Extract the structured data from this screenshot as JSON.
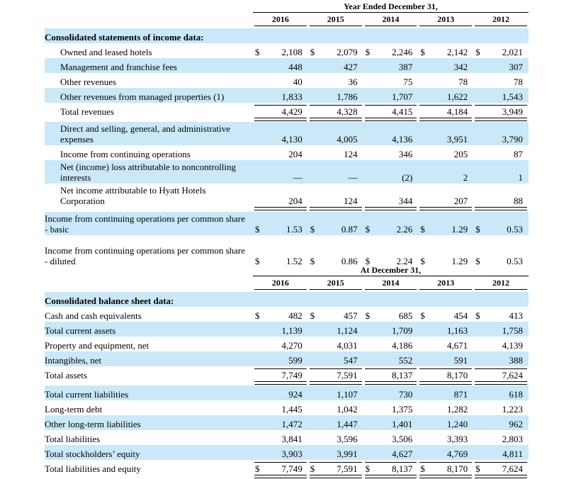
{
  "income_table": {
    "period_header": "Year Ended December 31,",
    "years": [
      "2016",
      "2015",
      "2014",
      "2013",
      "2012"
    ],
    "currency": "$",
    "rows": [
      {
        "name": "section-header-income",
        "label": "Consolidated statements of income data:",
        "bold": true,
        "highlight": true
      },
      {
        "name": "row-owned-and-leased-hotels",
        "label": "Owned and leased hotels",
        "indent": true,
        "dollars": true,
        "values": [
          "2,108",
          "2,079",
          "2,246",
          "2,142",
          "2,021"
        ]
      },
      {
        "name": "row-management-and-franchise-fees",
        "label": "Management and franchise fees",
        "indent": true,
        "highlight": true,
        "values": [
          "448",
          "427",
          "387",
          "342",
          "307"
        ]
      },
      {
        "name": "row-other-revenues",
        "label": "Other revenues",
        "indent": true,
        "values": [
          "40",
          "36",
          "75",
          "78",
          "78"
        ]
      },
      {
        "name": "row-other-revenues-managed-properties",
        "label": "Other revenues from managed properties (1)",
        "indent": true,
        "highlight": true,
        "values": [
          "1,833",
          "1,786",
          "1,707",
          "1,622",
          "1,543"
        ]
      },
      {
        "name": "row-total-revenues",
        "label": "Total revenues",
        "indent": true,
        "rule_top": true,
        "rule_bottom": "double",
        "values": [
          "4,429",
          "4,328",
          "4,415",
          "4,184",
          "3,949"
        ]
      },
      {
        "name": "row-direct-selling-general-admin-expenses",
        "label": "Direct and selling, general, and administrative",
        "label2": "expenses",
        "indent": true,
        "highlight": true,
        "space": 6,
        "values": [
          "4,130",
          "4,005",
          "4,136",
          "3,951",
          "3,790"
        ]
      },
      {
        "name": "row-income-from-continuing-operations",
        "label": "Income from continuing operations",
        "indent": true,
        "values": [
          "204",
          "124",
          "346",
          "205",
          "87"
        ]
      },
      {
        "name": "row-net-income-loss-noncontrolling-interests",
        "label": "Net (income) loss attributable to noncontrolling",
        "label2": "interests",
        "indent": true,
        "highlight": true,
        "values": [
          "—",
          "—",
          "(2)",
          "2",
          "1"
        ]
      },
      {
        "name": "row-net-income-hyatt-hotels-corporation",
        "label": "Net income attributable to Hyatt Hotels",
        "label2": "Corporation",
        "indent": true,
        "rule_bottom": "double",
        "values": [
          "204",
          "124",
          "344",
          "207",
          "88"
        ]
      },
      {
        "name": "row-income-per-share-basic",
        "label": "Income from continuing operations per common share",
        "label2": "- basic",
        "highlight": true,
        "dollars": true,
        "space": 7,
        "values": [
          "1.53",
          "0.87",
          "2.26",
          "1.29",
          "0.53"
        ]
      },
      {
        "name": "row-income-per-share-diluted",
        "label": "Income from continuing operations per common share",
        "label2": "- diluted",
        "dollars": true,
        "space": 12,
        "values": [
          "1.52",
          "0.86",
          "2.24",
          "1.29",
          "0.53"
        ]
      }
    ]
  },
  "balance_table": {
    "period_header": "At December 31,",
    "years": [
      "2016",
      "2015",
      "2014",
      "2013",
      "2012"
    ],
    "currency": "$",
    "rows": [
      {
        "name": "section-header-balance",
        "label": "Consolidated balance sheet data:",
        "bold": true,
        "highlight": true
      },
      {
        "name": "row-cash-and-cash-equivalents",
        "label": "Cash and cash equivalents",
        "dollars": true,
        "values": [
          "482",
          "457",
          "685",
          "454",
          "413"
        ]
      },
      {
        "name": "row-total-current-assets",
        "label": "Total current assets",
        "highlight": true,
        "values": [
          "1,139",
          "1,124",
          "1,709",
          "1,163",
          "1,758"
        ]
      },
      {
        "name": "row-property-and-equipment-net",
        "label": "Property and equipment, net",
        "values": [
          "4,270",
          "4,031",
          "4,186",
          "4,671",
          "4,139"
        ]
      },
      {
        "name": "row-intangibles-net",
        "label": "Intangibles, net",
        "highlight": true,
        "values": [
          "599",
          "547",
          "552",
          "591",
          "388"
        ]
      },
      {
        "name": "row-total-assets",
        "label": "Total assets",
        "rule_top": true,
        "rule_bottom": "double",
        "values": [
          "7,749",
          "7,591",
          "8,137",
          "8,170",
          "7,624"
        ]
      },
      {
        "name": "row-total-current-liabilities",
        "label": "Total current liabilities",
        "highlight": true,
        "values": [
          "924",
          "1,107",
          "730",
          "871",
          "618"
        ]
      },
      {
        "name": "row-long-term-debt",
        "label": "Long-term debt",
        "values": [
          "1,445",
          "1,042",
          "1,375",
          "1,282",
          "1,223"
        ]
      },
      {
        "name": "row-other-long-term-liabilities",
        "label": "Other long-term liabilities",
        "highlight": true,
        "values": [
          "1,472",
          "1,447",
          "1,401",
          "1,240",
          "962"
        ]
      },
      {
        "name": "row-total-liabilities",
        "label": "Total liabilities",
        "values": [
          "3,841",
          "3,596",
          "3,506",
          "3,393",
          "2,803"
        ]
      },
      {
        "name": "row-total-stockholders-equity",
        "label": "Total stockholders’ equity",
        "highlight": true,
        "values": [
          "3,903",
          "3,991",
          "4,627",
          "4,769",
          "4,811"
        ]
      },
      {
        "name": "row-total-liabilities-and-equity",
        "label": "Total liabilities and equity",
        "dollars": true,
        "rule_top": true,
        "rule_bottom": "double",
        "values": [
          "7,749",
          "7,591",
          "8,137",
          "8,170",
          "7,624"
        ]
      }
    ]
  }
}
